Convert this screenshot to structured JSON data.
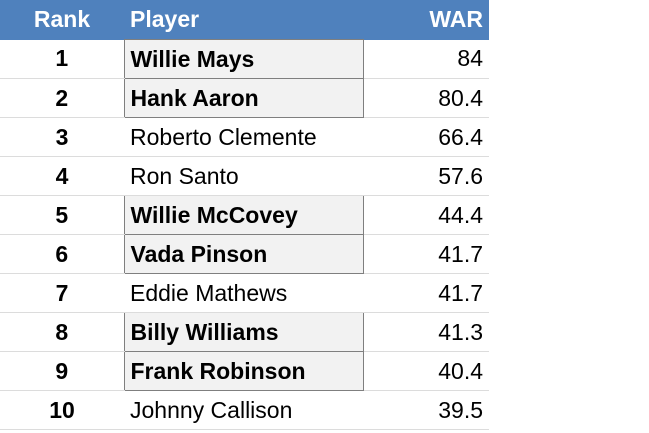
{
  "table": {
    "headers": {
      "rank": "Rank",
      "player": "Player",
      "war": "WAR"
    },
    "rows": [
      {
        "rank": "1",
        "player": "Willie Mays",
        "war": "84",
        "highlighted": true
      },
      {
        "rank": "2",
        "player": "Hank Aaron",
        "war": "80.4",
        "highlighted": true
      },
      {
        "rank": "3",
        "player": "Roberto Clemente",
        "war": "66.4",
        "highlighted": false
      },
      {
        "rank": "4",
        "player": "Ron Santo",
        "war": "57.6",
        "highlighted": false
      },
      {
        "rank": "5",
        "player": "Willie McCovey",
        "war": "44.4",
        "highlighted": true
      },
      {
        "rank": "6",
        "player": "Vada Pinson",
        "war": "41.7",
        "highlighted": true
      },
      {
        "rank": "7",
        "player": "Eddie Mathews",
        "war": "41.7",
        "highlighted": false
      },
      {
        "rank": "8",
        "player": "Billy Williams",
        "war": "41.3",
        "highlighted": true
      },
      {
        "rank": "9",
        "player": "Frank Robinson",
        "war": "40.4",
        "highlighted": true
      },
      {
        "rank": "10",
        "player": "Johnny Callison",
        "war": "39.5",
        "highlighted": false
      }
    ]
  },
  "colors": {
    "header_bg": "#4f81bd",
    "header_text": "#ffffff",
    "highlight_bg": "#f2f2f2",
    "highlight_border": "#7f7f7f"
  }
}
